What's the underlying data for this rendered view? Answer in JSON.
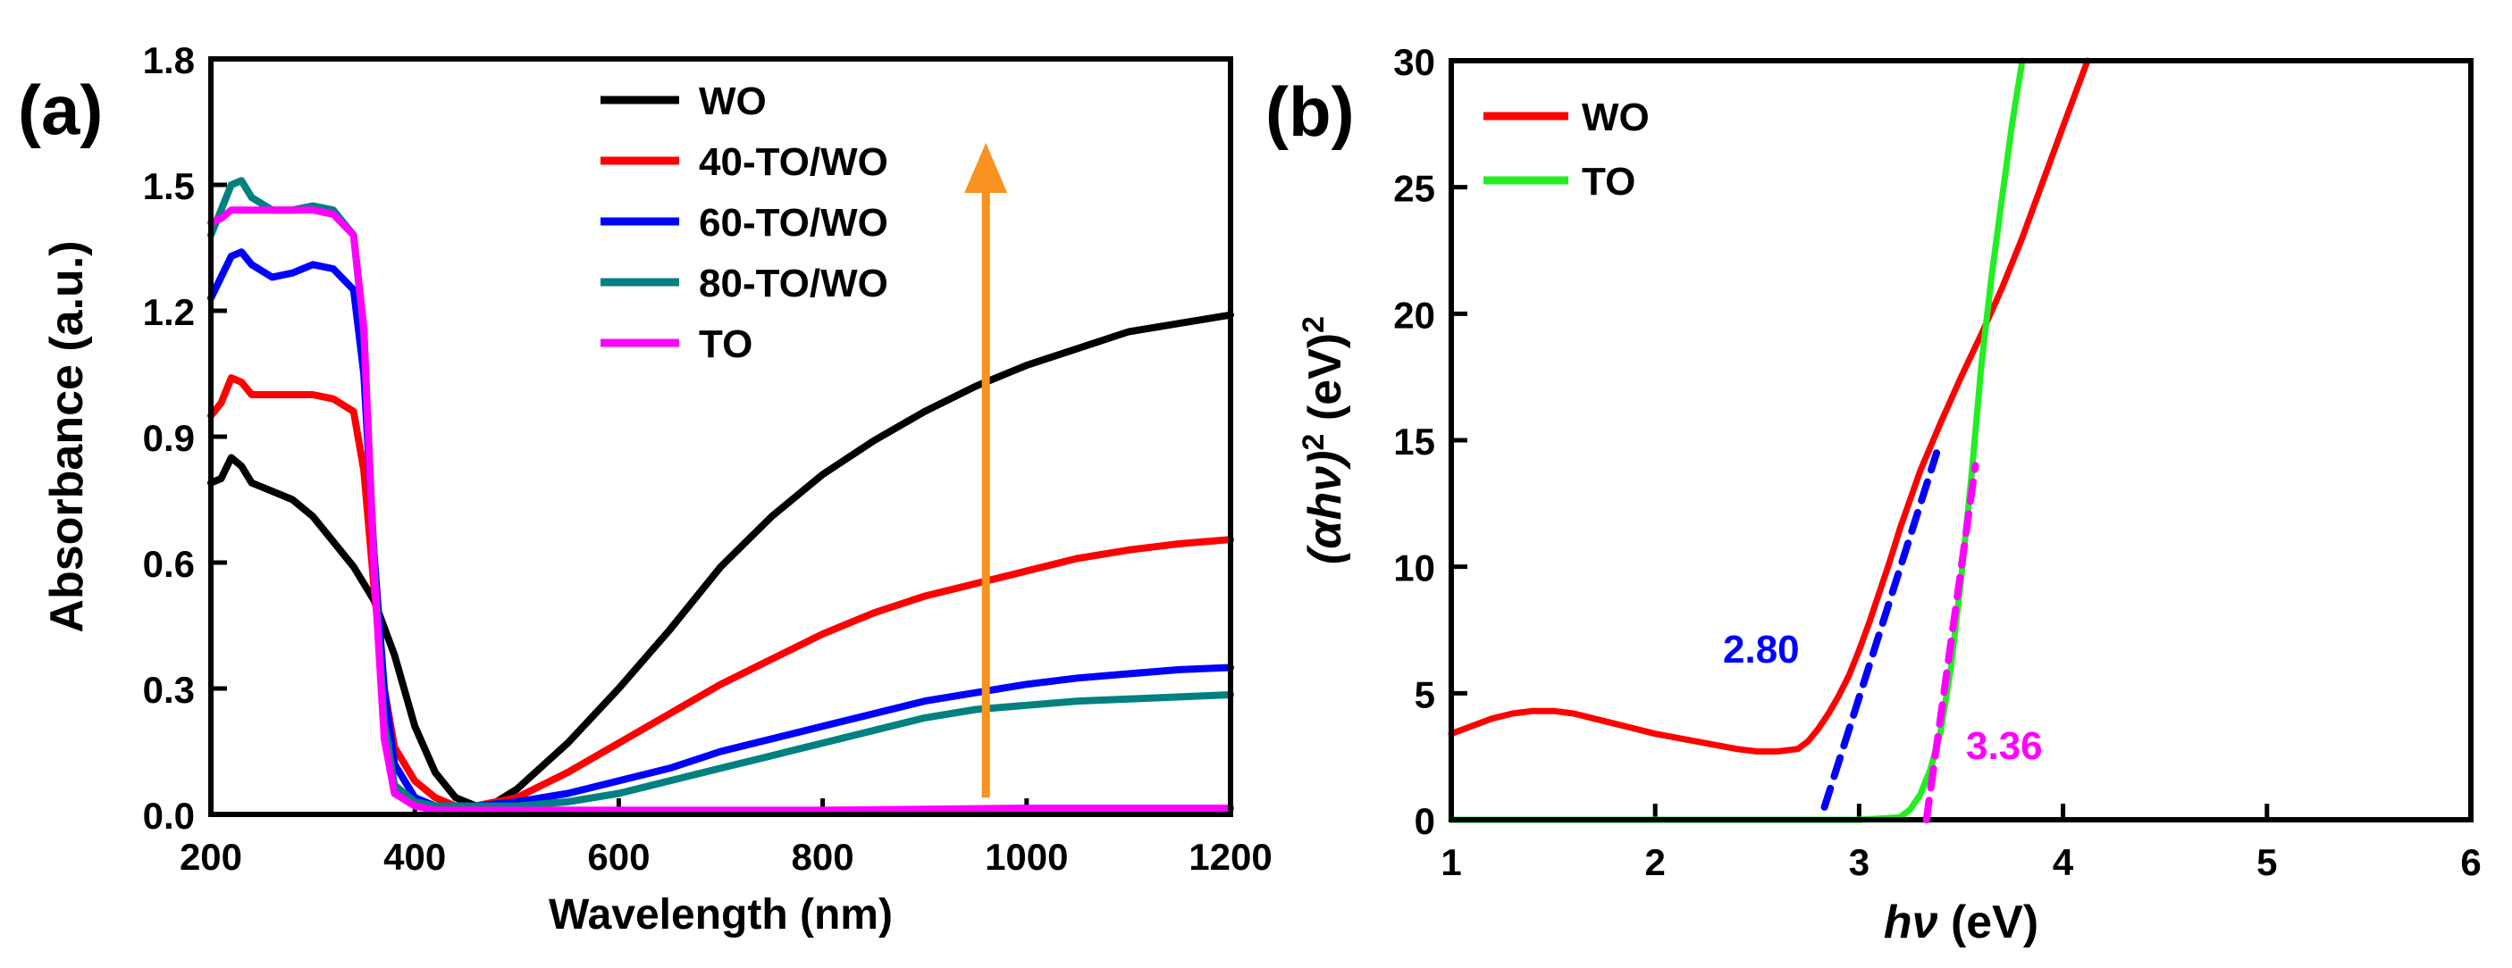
{
  "chart_data": [
    {
      "panel_label": "(a)",
      "type": "line",
      "title": "",
      "xlabel": "Wavelength (nm)",
      "ylabel": "Absorbance (a.u.)",
      "xlim": [
        200,
        1200
      ],
      "ylim": [
        0.0,
        1.8
      ],
      "xticks": [
        "200",
        "400",
        "600",
        "800",
        "1000",
        "1200"
      ],
      "yticks": [
        "0.0",
        "0.3",
        "0.6",
        "0.9",
        "1.2",
        "1.5",
        "1.8"
      ],
      "legend_position": "top-center",
      "arrow": {
        "x": 960,
        "y_start": 0.04,
        "y_end": 1.6,
        "color": "#f7931e",
        "direction": "up"
      },
      "series": [
        {
          "name": "WO",
          "color": "#000000",
          "x": [
            200,
            210,
            220,
            230,
            240,
            260,
            280,
            300,
            320,
            340,
            360,
            380,
            400,
            420,
            440,
            460,
            480,
            500,
            550,
            600,
            650,
            700,
            750,
            800,
            850,
            900,
            950,
            1000,
            1050,
            1100,
            1150,
            1200
          ],
          "values": [
            0.79,
            0.8,
            0.85,
            0.83,
            0.79,
            0.77,
            0.75,
            0.71,
            0.65,
            0.59,
            0.51,
            0.38,
            0.21,
            0.1,
            0.04,
            0.02,
            0.03,
            0.06,
            0.17,
            0.3,
            0.44,
            0.59,
            0.71,
            0.81,
            0.89,
            0.96,
            1.02,
            1.07,
            1.11,
            1.15,
            1.17,
            1.19
          ]
        },
        {
          "name": "40-TO/WO",
          "color": "#ff0000",
          "x": [
            200,
            210,
            220,
            230,
            240,
            260,
            280,
            300,
            320,
            340,
            350,
            360,
            370,
            380,
            400,
            420,
            440,
            460,
            500,
            550,
            600,
            650,
            700,
            750,
            800,
            850,
            900,
            950,
            1000,
            1050,
            1100,
            1150,
            1200
          ],
          "values": [
            0.95,
            0.98,
            1.04,
            1.03,
            1.0,
            1.0,
            1.0,
            1.0,
            0.99,
            0.96,
            0.82,
            0.54,
            0.3,
            0.16,
            0.08,
            0.04,
            0.02,
            0.02,
            0.04,
            0.1,
            0.17,
            0.24,
            0.31,
            0.37,
            0.43,
            0.48,
            0.52,
            0.55,
            0.58,
            0.61,
            0.63,
            0.645,
            0.655
          ]
        },
        {
          "name": "60-TO/WO",
          "color": "#0000ff",
          "x": [
            200,
            210,
            220,
            230,
            240,
            260,
            280,
            300,
            320,
            340,
            350,
            360,
            370,
            380,
            400,
            420,
            440,
            460,
            500,
            550,
            600,
            650,
            700,
            750,
            800,
            850,
            900,
            950,
            1000,
            1050,
            1100,
            1150,
            1200
          ],
          "values": [
            1.23,
            1.28,
            1.33,
            1.34,
            1.31,
            1.28,
            1.29,
            1.31,
            1.3,
            1.25,
            1.05,
            0.62,
            0.3,
            0.12,
            0.04,
            0.02,
            0.02,
            0.02,
            0.03,
            0.05,
            0.08,
            0.11,
            0.15,
            0.18,
            0.21,
            0.24,
            0.27,
            0.29,
            0.31,
            0.325,
            0.335,
            0.345,
            0.35
          ]
        },
        {
          "name": "80-TO/WO",
          "color": "#008080",
          "x": [
            200,
            210,
            220,
            230,
            240,
            260,
            280,
            300,
            320,
            340,
            350,
            360,
            370,
            380,
            400,
            420,
            440,
            460,
            500,
            550,
            600,
            650,
            700,
            750,
            800,
            850,
            900,
            950,
            1000,
            1050,
            1100,
            1150,
            1200
          ],
          "values": [
            1.38,
            1.44,
            1.5,
            1.51,
            1.47,
            1.44,
            1.44,
            1.45,
            1.44,
            1.38,
            1.15,
            0.6,
            0.22,
            0.07,
            0.03,
            0.02,
            0.02,
            0.02,
            0.02,
            0.03,
            0.05,
            0.08,
            0.11,
            0.14,
            0.17,
            0.2,
            0.23,
            0.25,
            0.26,
            0.27,
            0.275,
            0.28,
            0.285
          ]
        },
        {
          "name": "TO",
          "color": "#ff00ff",
          "x": [
            200,
            210,
            220,
            230,
            240,
            260,
            280,
            300,
            320,
            340,
            350,
            360,
            370,
            380,
            400,
            420,
            460,
            500,
            600,
            800,
            1000,
            1200
          ],
          "values": [
            1.41,
            1.42,
            1.44,
            1.44,
            1.44,
            1.44,
            1.44,
            1.44,
            1.43,
            1.38,
            1.16,
            0.58,
            0.18,
            0.05,
            0.02,
            0.01,
            0.01,
            0.01,
            0.01,
            0.01,
            0.015,
            0.015
          ]
        }
      ]
    },
    {
      "panel_label": "(b)",
      "type": "line",
      "title": "",
      "xlabel": "hν (eV)",
      "ylabel": "(αhν)² (eV)²",
      "xlim": [
        1,
        6
      ],
      "ylim": [
        0,
        30
      ],
      "xticks": [
        "1",
        "2",
        "3",
        "4",
        "5",
        "6"
      ],
      "yticks": [
        "0",
        "5",
        "10",
        "15",
        "20",
        "25",
        "30"
      ],
      "legend_position": "top-left",
      "series": [
        {
          "name": "WO",
          "color": "#ff0000",
          "x": [
            1.0,
            1.1,
            1.2,
            1.3,
            1.4,
            1.5,
            1.6,
            1.7,
            1.8,
            1.9,
            2.0,
            2.2,
            2.4,
            2.5,
            2.6,
            2.7,
            2.75,
            2.8,
            2.85,
            2.9,
            2.95,
            3.0,
            3.05,
            3.1,
            3.15,
            3.2,
            3.3,
            3.4,
            3.5,
            3.6,
            3.7,
            3.8,
            3.9,
            4.0,
            4.12
          ],
          "values": [
            3.4,
            3.7,
            4.0,
            4.2,
            4.3,
            4.3,
            4.2,
            4.0,
            3.8,
            3.6,
            3.4,
            3.1,
            2.8,
            2.7,
            2.7,
            2.8,
            3.1,
            3.6,
            4.2,
            4.9,
            5.7,
            6.7,
            7.8,
            9.0,
            10.2,
            11.5,
            13.8,
            15.7,
            17.5,
            19.2,
            21.0,
            23.0,
            25.2,
            27.4,
            30.0
          ]
        },
        {
          "name": "TO",
          "color": "#22ee22",
          "x": [
            1.0,
            2.0,
            3.0,
            3.2,
            3.25,
            3.3,
            3.35,
            3.4,
            3.45,
            3.5,
            3.55,
            3.6,
            3.65,
            3.7,
            3.75,
            3.8
          ],
          "values": [
            0,
            0,
            0,
            0.1,
            0.4,
            1.0,
            2.0,
            3.5,
            6.0,
            9.5,
            13.5,
            18.0,
            21.5,
            24.5,
            27.5,
            30.0
          ]
        }
      ],
      "fit_lines": [
        {
          "label": "2.80",
          "color": "#0000ff",
          "style": "dashed",
          "x": [
            2.83,
            3.38
          ],
          "values": [
            0.5,
            14.5
          ]
        },
        {
          "label": "3.36",
          "color": "#ff00ff",
          "style": "dashed",
          "x": [
            3.33,
            3.57
          ],
          "values": [
            0.0,
            14.0
          ]
        }
      ]
    }
  ]
}
